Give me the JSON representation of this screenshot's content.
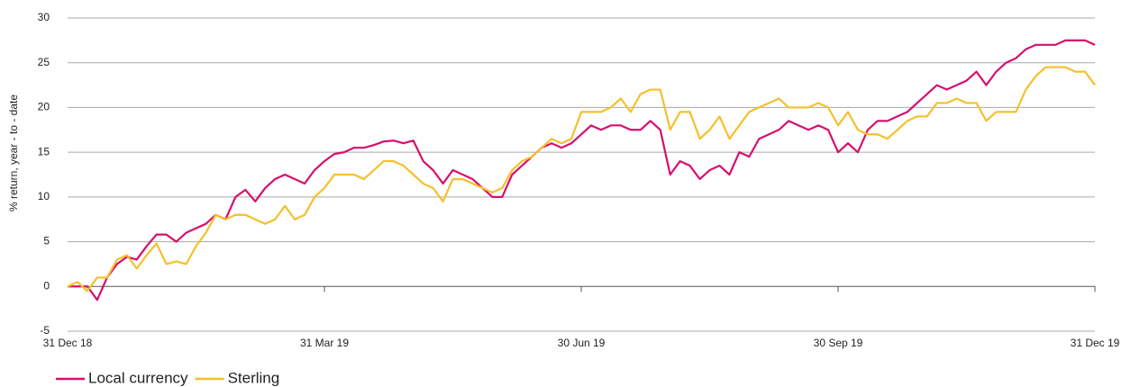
{
  "chart_data": {
    "type": "line",
    "y_label": "% return, year - to - date",
    "categories": [
      "31 Dec 18",
      null,
      null,
      null,
      null,
      null,
      null,
      null,
      null,
      null,
      null,
      null,
      null,
      null,
      null,
      null,
      null,
      null,
      null,
      null,
      null,
      null,
      null,
      null,
      null,
      null,
      "31 Mar 19",
      null,
      null,
      null,
      null,
      null,
      null,
      null,
      null,
      null,
      null,
      null,
      null,
      null,
      null,
      null,
      null,
      null,
      null,
      null,
      null,
      null,
      null,
      null,
      null,
      null,
      "30 Jun 19",
      null,
      null,
      null,
      null,
      null,
      null,
      null,
      null,
      null,
      null,
      null,
      null,
      null,
      null,
      null,
      null,
      null,
      null,
      null,
      null,
      null,
      null,
      null,
      null,
      null,
      "30 Sep 19",
      null,
      null,
      null,
      null,
      null,
      null,
      null,
      null,
      null,
      null,
      null,
      null,
      null,
      null,
      null,
      null,
      null,
      null,
      null,
      null,
      null,
      null,
      null,
      null,
      null,
      "31 Dec 19"
    ],
    "series": [
      {
        "name": "Local currency",
        "color": "#d6106e",
        "values": [
          0,
          0,
          0,
          -1.5,
          1,
          2.5,
          3.3,
          3,
          4.5,
          5.8,
          5.8,
          5,
          6,
          6.5,
          7,
          8,
          7.5,
          10,
          10.8,
          9.5,
          11,
          12,
          12.5,
          12,
          11.5,
          13,
          14,
          14.8,
          15,
          15.5,
          15.5,
          15.8,
          16.2,
          16.3,
          16,
          16.3,
          14,
          13,
          11.5,
          13,
          12.5,
          12,
          11,
          10,
          10,
          12.5,
          13.5,
          14.5,
          15.5,
          16,
          15.5,
          16,
          17,
          18,
          17.5,
          18,
          18,
          17.5,
          17.5,
          18.5,
          17.5,
          12.5,
          14,
          13.5,
          12,
          13,
          13.5,
          12.5,
          15,
          14.5,
          16.5,
          17,
          17.5,
          18.5,
          18,
          17.5,
          18,
          17.5,
          15,
          16,
          15,
          17.5,
          18.5,
          18.5,
          19,
          19.5,
          20.5,
          21.5,
          22.5,
          22,
          22.5,
          23,
          24,
          22.5,
          24,
          25,
          25.5,
          26.5,
          27,
          27,
          27,
          27.5,
          27.5,
          27.5,
          27
        ]
      },
      {
        "name": "Sterling",
        "color": "#f5c02c",
        "values": [
          0,
          0.5,
          -0.5,
          1,
          1,
          3,
          3.5,
          2,
          3.5,
          4.8,
          2.5,
          2.8,
          2.5,
          4.5,
          6,
          8,
          7.5,
          8,
          8,
          7.5,
          7,
          7.5,
          9,
          7.5,
          8,
          10,
          11,
          12.5,
          12.5,
          12.5,
          12,
          13,
          14,
          14,
          13.5,
          12.5,
          11.5,
          11,
          9.5,
          12,
          12,
          11.5,
          11,
          10.5,
          11,
          13,
          14,
          14.5,
          15.5,
          16.5,
          16,
          16.5,
          19.5,
          19.5,
          19.5,
          20,
          21,
          19.5,
          21.5,
          22,
          22,
          17.5,
          19.5,
          19.5,
          16.5,
          17.5,
          19,
          16.5,
          18,
          19.5,
          20,
          20.5,
          21,
          20,
          20,
          20,
          20.5,
          20,
          18,
          19.5,
          17.5,
          17,
          17,
          16.5,
          17.5,
          18.5,
          19,
          19,
          20.5,
          20.5,
          21,
          20.5,
          20.5,
          18.5,
          19.5,
          19.5,
          19.5,
          22,
          23.5,
          24.5,
          24.5,
          24.5,
          24,
          24,
          22.5
        ]
      }
    ],
    "ylim": [
      -5,
      30
    ],
    "yticks": [
      -5,
      0,
      5,
      10,
      15,
      20,
      25,
      30
    ],
    "grid": true,
    "legend": "bottom"
  }
}
